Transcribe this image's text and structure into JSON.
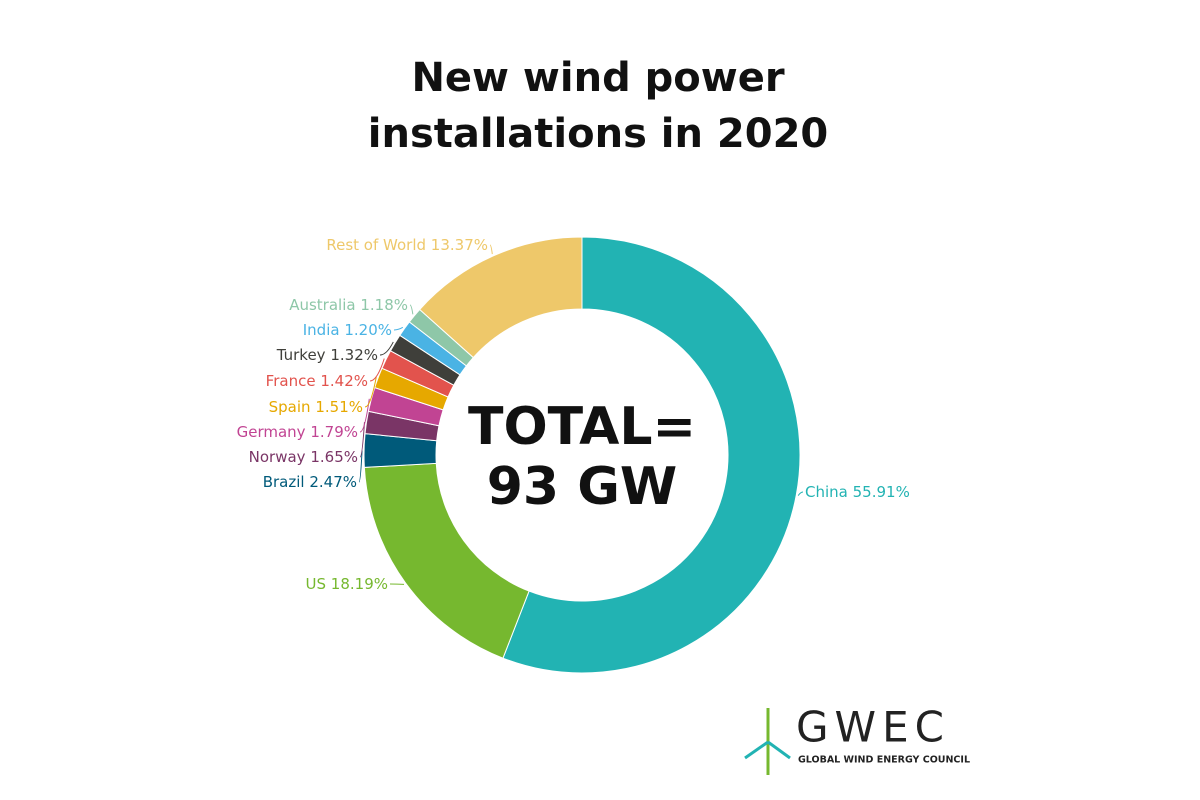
{
  "chart_data": {
    "type": "donut",
    "title": [
      "New wind power",
      "installations in 2020"
    ],
    "center_label": [
      "TOTAL=",
      "93 GW"
    ],
    "categories": [
      "China",
      "US",
      "Brazil",
      "Norway",
      "Germany",
      "Spain",
      "France",
      "Turkey",
      "India",
      "Australia",
      "Rest of World"
    ],
    "values": [
      55.91,
      18.19,
      2.47,
      1.65,
      1.79,
      1.51,
      1.42,
      1.32,
      1.2,
      1.18,
      13.37
    ],
    "value_labels": [
      "55.91%",
      "18.19%",
      "2.47%",
      "1.65%",
      "1.79%",
      "1.51%",
      "1.42%",
      "1.32%",
      "1.20%",
      "1.18%",
      "13.37%"
    ],
    "colors": [
      "#22b3b3",
      "#76b82f",
      "#005a7a",
      "#7a3566",
      "#c14493",
      "#e6a800",
      "#e2534d",
      "#3f3f3a",
      "#4ab3e4",
      "#8ec7a8",
      "#eec86a"
    ]
  },
  "logo": {
    "name": "GWEC",
    "tagline": "GLOBAL WIND ENERGY COUNCIL"
  }
}
